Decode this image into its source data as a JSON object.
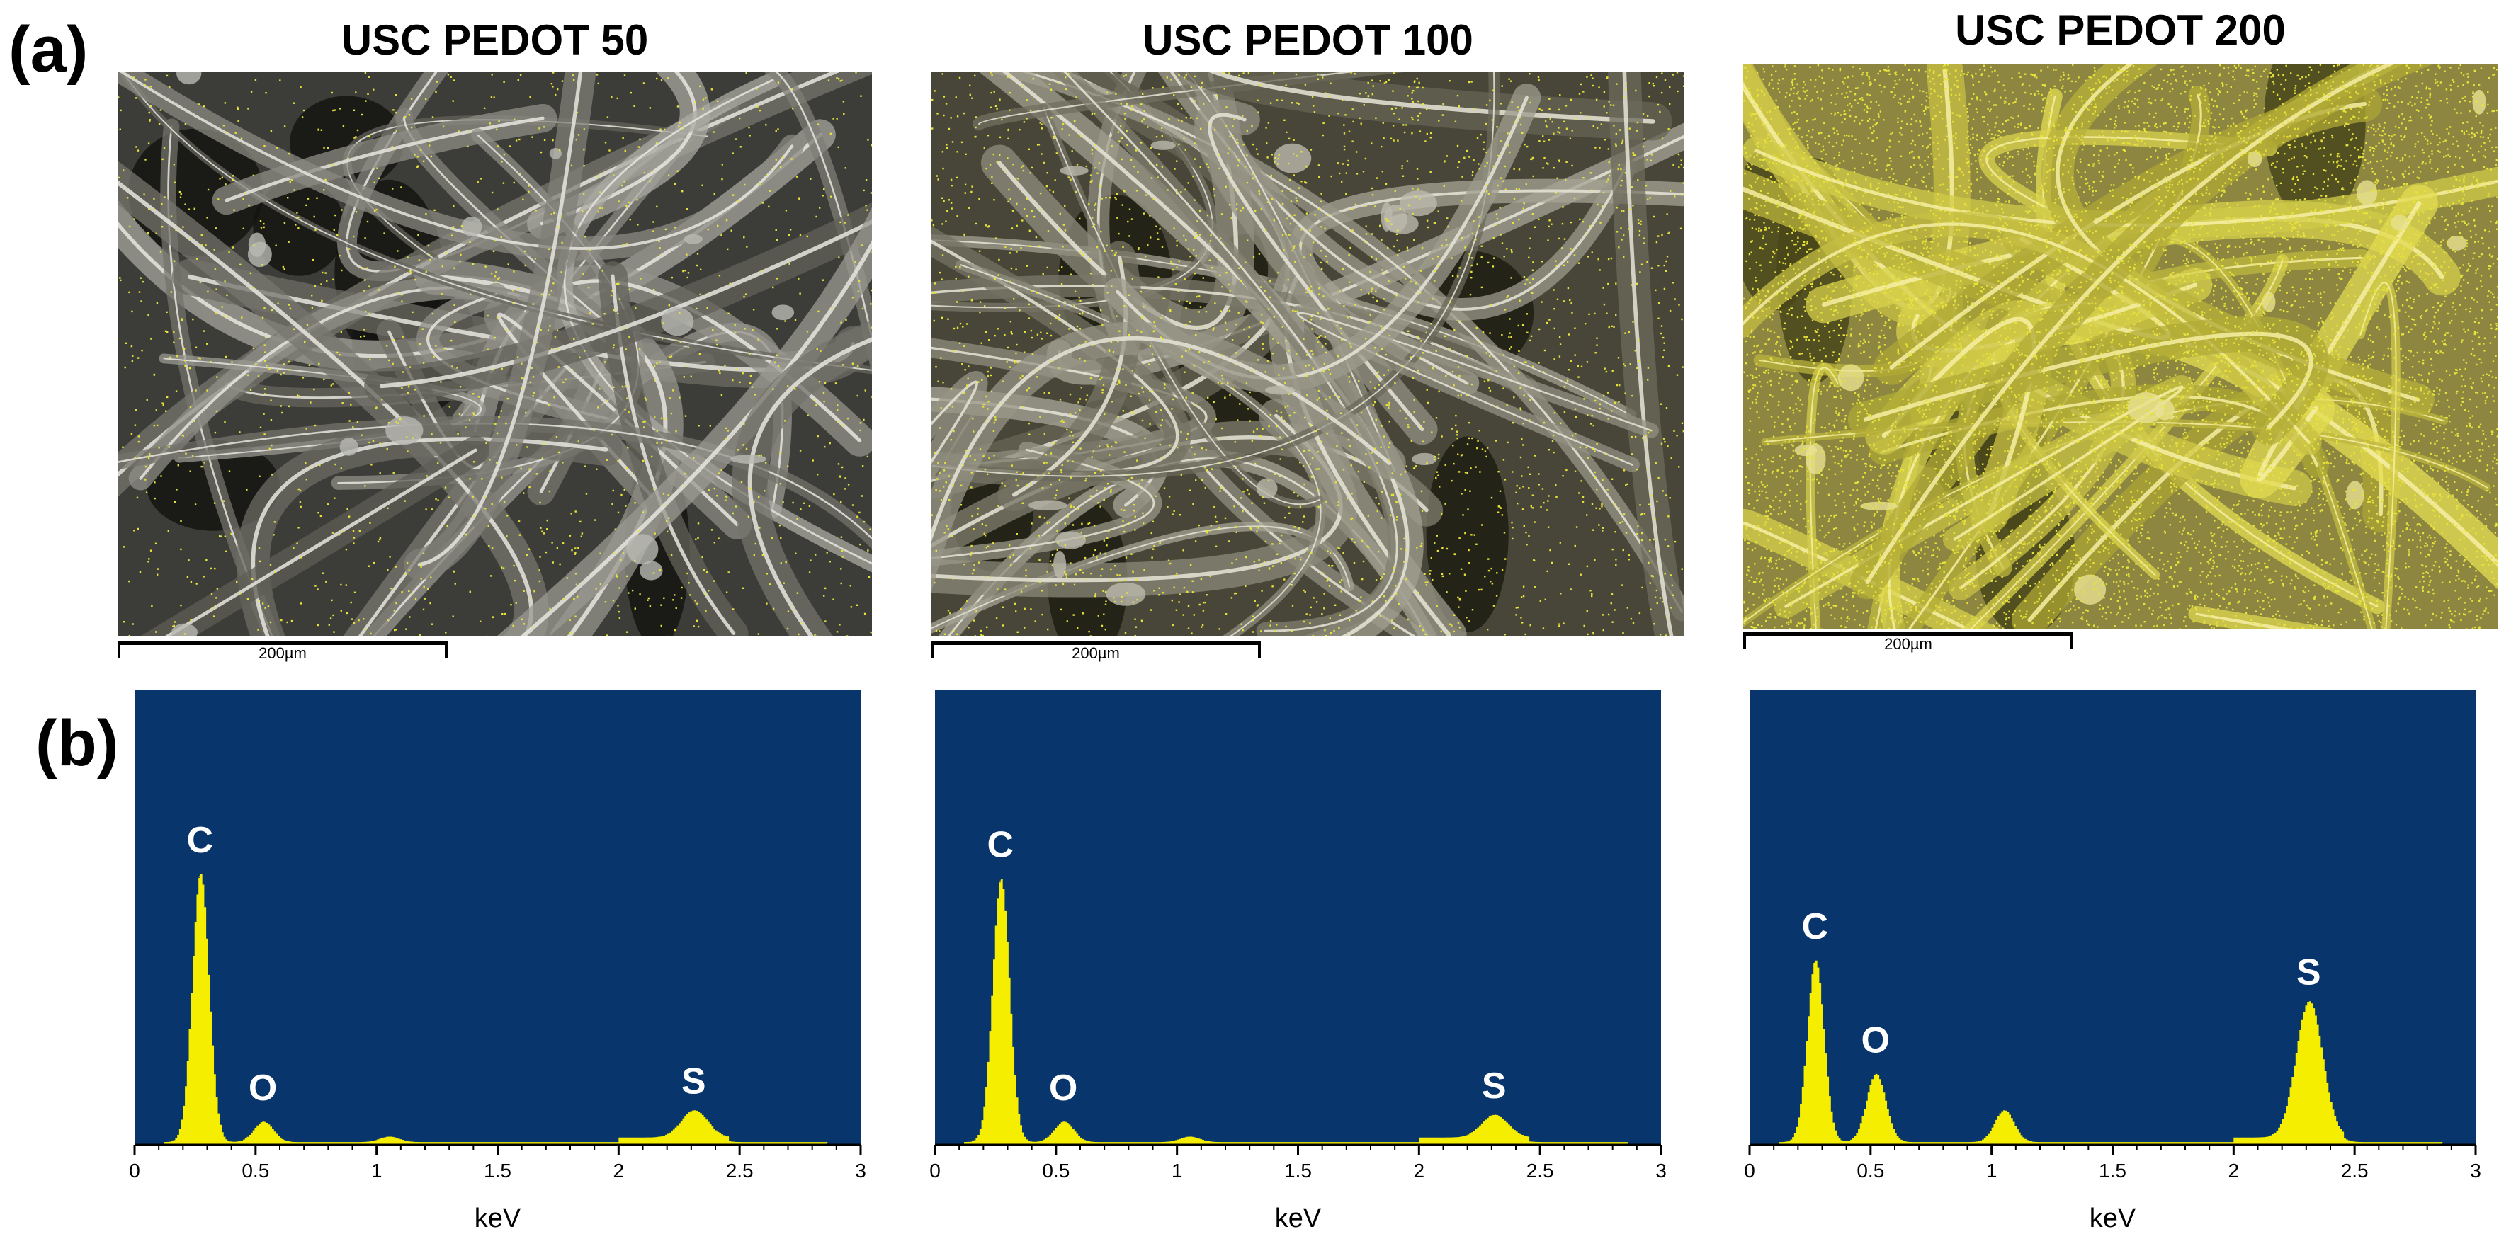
{
  "figure": {
    "panel_a_label": "(a)",
    "panel_b_label": "(b)",
    "scale_bar_label": "200µm",
    "colors": {
      "map_dots": "#e8e33a",
      "spectrum_background": "#08356b",
      "spectrum_fill": "#f5ee00",
      "peak_label": "#ffffff"
    }
  },
  "samples": [
    {
      "title": "USC PEDOT 50"
    },
    {
      "title": "USC PEDOT 100"
    },
    {
      "title": "USC PEDOT 200"
    }
  ],
  "chart_data": [
    {
      "type": "area",
      "title": "USC PEDOT 50",
      "xlabel": "keV",
      "ylabel": "",
      "xlim": [
        0,
        3
      ],
      "ylim": [
        0,
        1
      ],
      "xticks": [
        "0",
        "0.5",
        "1",
        "1.5",
        "2",
        "2.5",
        "3"
      ],
      "peaks": [
        {
          "label": "C",
          "x": 0.27,
          "y": 0.59
        },
        {
          "label": "O",
          "x": 0.53,
          "y": 0.045
        },
        {
          "label": "",
          "x": 1.05,
          "y": 0.012
        },
        {
          "label": "S",
          "x": 2.31,
          "y": 0.06
        }
      ]
    },
    {
      "type": "area",
      "title": "USC PEDOT 100",
      "xlabel": "keV",
      "ylabel": "",
      "xlim": [
        0,
        3
      ],
      "ylim": [
        0,
        1
      ],
      "xticks": [
        "0",
        "0.5",
        "1",
        "1.5",
        "2",
        "2.5",
        "3"
      ],
      "peaks": [
        {
          "label": "C",
          "x": 0.27,
          "y": 0.58
        },
        {
          "label": "O",
          "x": 0.53,
          "y": 0.045
        },
        {
          "label": "",
          "x": 1.05,
          "y": 0.012
        },
        {
          "label": "S",
          "x": 2.31,
          "y": 0.05
        }
      ]
    },
    {
      "type": "area",
      "title": "USC PEDOT 200",
      "xlabel": "keV",
      "ylabel": "",
      "xlim": [
        0,
        3
      ],
      "ylim": [
        0,
        1
      ],
      "xticks": [
        "0",
        "0.5",
        "1",
        "1.5",
        "2",
        "2.5",
        "3"
      ],
      "peaks": [
        {
          "label": "C",
          "x": 0.27,
          "y": 0.4
        },
        {
          "label": "O",
          "x": 0.52,
          "y": 0.15
        },
        {
          "label": "",
          "x": 1.05,
          "y": 0.07
        },
        {
          "label": "S",
          "x": 2.31,
          "y": 0.3
        }
      ]
    }
  ]
}
